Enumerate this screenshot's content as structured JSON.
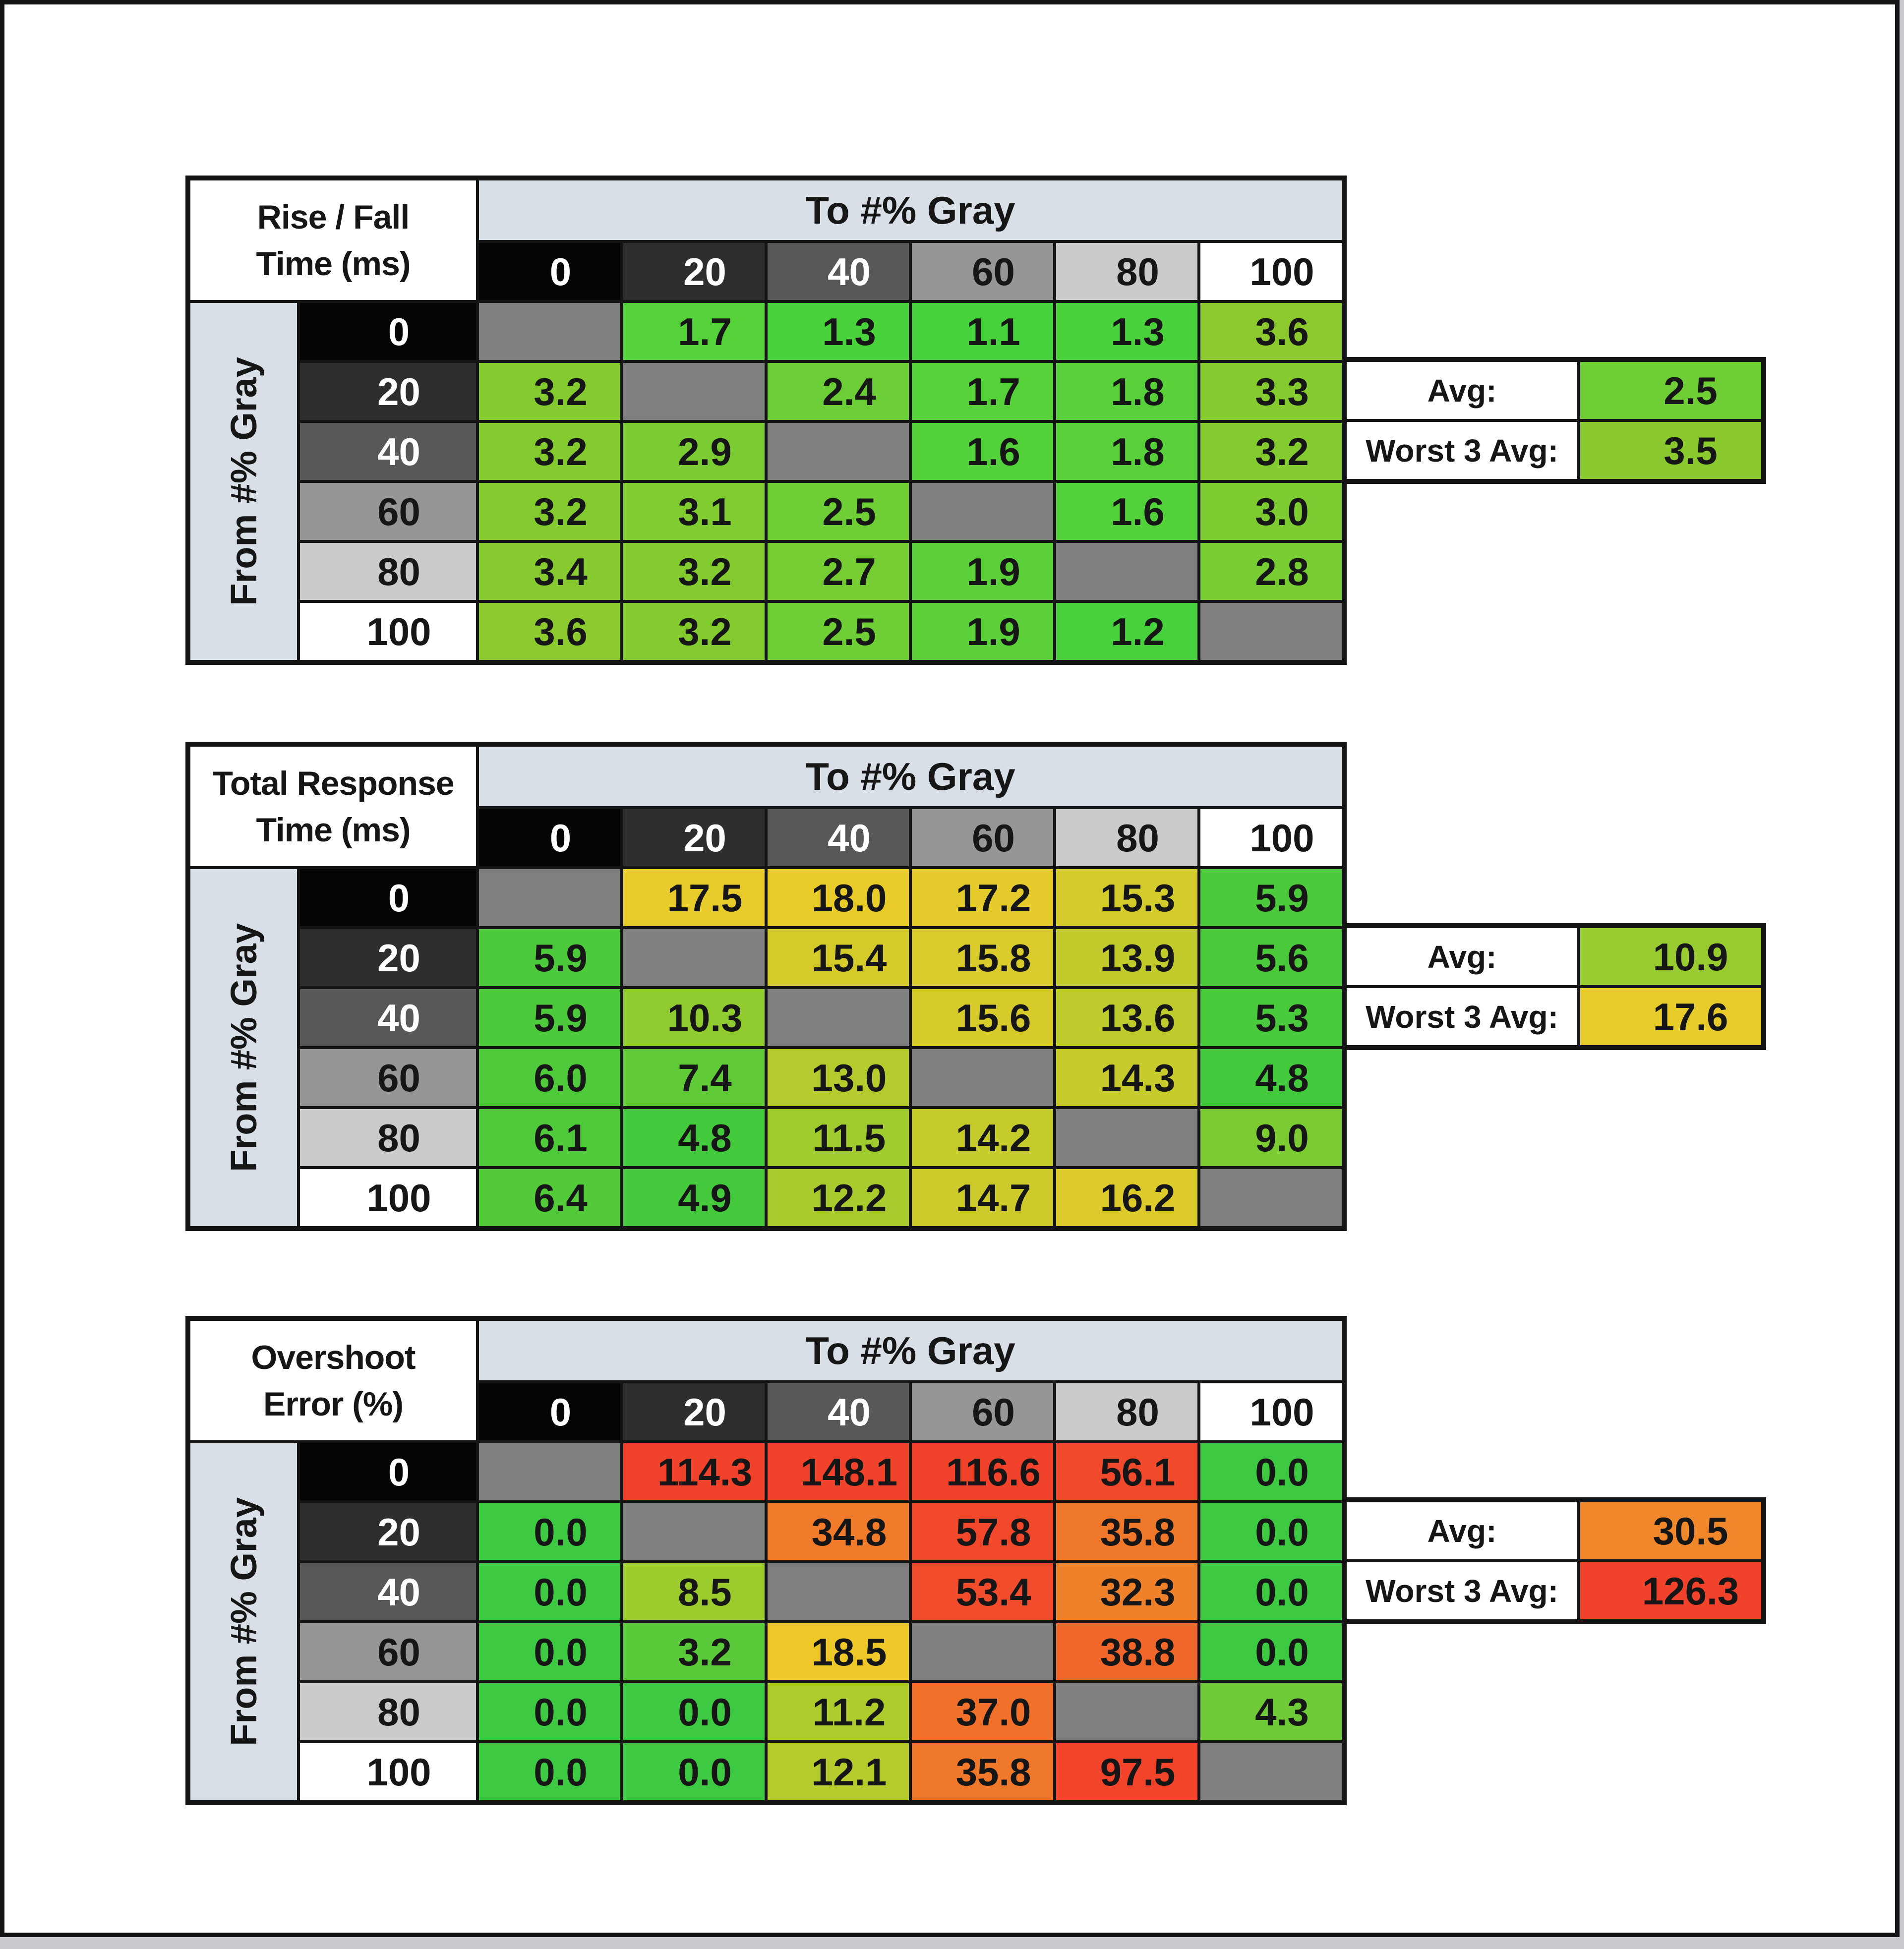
{
  "page": {
    "outer_bg": "#c9cbce",
    "frame_border": "#141414",
    "canvas_bg": "#ffffff"
  },
  "palette": {
    "band_bg": "#d9dfe7",
    "diagonal_bg": "#7f7f7f",
    "grid_line": "#141414",
    "good_green": "#3ec943",
    "mid_yellow": "#e6cb2b",
    "bad_red": "#f1432b"
  },
  "gray_scale": [
    {
      "label": "0",
      "bg": "#050505",
      "fg": "#ffffff"
    },
    {
      "label": "20",
      "bg": "#2e2e2e",
      "fg": "#ffffff"
    },
    {
      "label": "40",
      "bg": "#585858",
      "fg": "#ffffff"
    },
    {
      "label": "60",
      "bg": "#969696",
      "fg": "#161616"
    },
    {
      "label": "80",
      "bg": "#cbcbcb",
      "fg": "#161616"
    },
    {
      "label": "100",
      "bg": "#ffffff",
      "fg": "#161616"
    }
  ],
  "tables": [
    {
      "id": "rise-fall",
      "title_line1": "Rise / Fall",
      "title_line2": "Time (ms)",
      "to_label": "To #% Gray",
      "from_label": "From #% Gray",
      "rows": [
        [
          null,
          {
            "v": "1.7",
            "c": "#55d13a"
          },
          {
            "v": "1.3",
            "c": "#49d23c"
          },
          {
            "v": "1.1",
            "c": "#46d23d"
          },
          {
            "v": "1.3",
            "c": "#49d23c"
          },
          {
            "v": "3.6",
            "c": "#8dca2f"
          }
        ],
        [
          {
            "v": "3.2",
            "c": "#84cb30"
          },
          null,
          {
            "v": "2.4",
            "c": "#6cce36"
          },
          {
            "v": "1.7",
            "c": "#55d13a"
          },
          {
            "v": "1.8",
            "c": "#58d039"
          },
          {
            "v": "3.3",
            "c": "#86cb30"
          }
        ],
        [
          {
            "v": "3.2",
            "c": "#84cb30"
          },
          {
            "v": "2.9",
            "c": "#7bcc32"
          },
          null,
          {
            "v": "1.6",
            "c": "#52d13b"
          },
          {
            "v": "1.8",
            "c": "#58d039"
          },
          {
            "v": "3.2",
            "c": "#84cb30"
          }
        ],
        [
          {
            "v": "3.2",
            "c": "#84cb30"
          },
          {
            "v": "3.1",
            "c": "#81cc31"
          },
          {
            "v": "2.5",
            "c": "#6fce35"
          },
          null,
          {
            "v": "1.6",
            "c": "#52d13b"
          },
          {
            "v": "3.0",
            "c": "#7ecc31"
          }
        ],
        [
          {
            "v": "3.4",
            "c": "#88cb30"
          },
          {
            "v": "3.2",
            "c": "#84cb30"
          },
          {
            "v": "2.7",
            "c": "#75cd33"
          },
          {
            "v": "1.9",
            "c": "#5bd039"
          },
          null,
          {
            "v": "2.8",
            "c": "#78cd33"
          }
        ],
        [
          {
            "v": "3.6",
            "c": "#8dca2f"
          },
          {
            "v": "3.2",
            "c": "#84cb30"
          },
          {
            "v": "2.5",
            "c": "#6fce35"
          },
          {
            "v": "1.9",
            "c": "#5bd039"
          },
          {
            "v": "1.2",
            "c": "#47d23d"
          },
          null
        ]
      ],
      "summary": {
        "avg_label": "Avg:",
        "avg_value": "2.5",
        "avg_color": "#6fce35",
        "worst_label": "Worst 3 Avg:",
        "worst_value": "3.5",
        "worst_color": "#8aca2f"
      }
    },
    {
      "id": "total-response",
      "title_line1": "Total Response",
      "title_line2": "Time (ms)",
      "to_label": "To #% Gray",
      "from_label": "From #% Gray",
      "rows": [
        [
          null,
          {
            "v": "17.5",
            "c": "#e6cb2b"
          },
          {
            "v": "18.0",
            "c": "#e9cb2a"
          },
          {
            "v": "17.2",
            "c": "#e4cb2b"
          },
          {
            "v": "15.3",
            "c": "#d3cb2b"
          },
          {
            "v": "5.9",
            "c": "#4dca3b"
          }
        ],
        [
          {
            "v": "5.9",
            "c": "#4dca3b"
          },
          null,
          {
            "v": "15.4",
            "c": "#d4cb2b"
          },
          {
            "v": "15.8",
            "c": "#d8cb2b"
          },
          {
            "v": "13.9",
            "c": "#c2cb2c"
          },
          {
            "v": "5.6",
            "c": "#4aca3b"
          }
        ],
        [
          {
            "v": "5.9",
            "c": "#4dca3b"
          },
          {
            "v": "10.3",
            "c": "#90cb30"
          },
          null,
          {
            "v": "15.6",
            "c": "#d6cb2b"
          },
          {
            "v": "13.6",
            "c": "#becb2c"
          },
          {
            "v": "5.3",
            "c": "#48ca3c"
          }
        ],
        [
          {
            "v": "6.0",
            "c": "#4eca3a"
          },
          {
            "v": "7.4",
            "c": "#60ca37"
          },
          {
            "v": "13.0",
            "c": "#b5cb2d"
          },
          null,
          {
            "v": "14.3",
            "c": "#c7cb2c"
          },
          {
            "v": "4.8",
            "c": "#44ca3d"
          }
        ],
        [
          {
            "v": "6.1",
            "c": "#4fca3a"
          },
          {
            "v": "4.8",
            "c": "#44ca3d"
          },
          {
            "v": "11.5",
            "c": "#a0cb2e"
          },
          {
            "v": "14.2",
            "c": "#c6cb2c"
          },
          null,
          {
            "v": "9.0",
            "c": "#7ccb33"
          }
        ],
        [
          {
            "v": "6.4",
            "c": "#52ca39"
          },
          {
            "v": "4.9",
            "c": "#45ca3d"
          },
          {
            "v": "12.2",
            "c": "#aacb2d"
          },
          {
            "v": "14.7",
            "c": "#cccb2b"
          },
          {
            "v": "16.2",
            "c": "#dccb2b"
          },
          null
        ]
      ],
      "summary": {
        "avg_label": "Avg:",
        "avg_value": "10.9",
        "avg_color": "#97cb2f",
        "worst_label": "Worst 3 Avg:",
        "worst_value": "17.6",
        "worst_color": "#e6cb2b"
      }
    },
    {
      "id": "overshoot",
      "title_line1": "Overshoot",
      "title_line2": "Error (%)",
      "to_label": "To #% Gray",
      "from_label": "From #% Gray",
      "rows": [
        [
          null,
          {
            "v": "114.3",
            "c": "#f1432b"
          },
          {
            "v": "148.1",
            "c": "#f1432b"
          },
          {
            "v": "116.6",
            "c": "#f1432b"
          },
          {
            "v": "56.1",
            "c": "#f1492b"
          },
          {
            "v": "0.0",
            "c": "#3ec943"
          }
        ],
        [
          {
            "v": "0.0",
            "c": "#3ec943"
          },
          null,
          {
            "v": "34.8",
            "c": "#f07b2a"
          },
          {
            "v": "57.8",
            "c": "#f1482b"
          },
          {
            "v": "35.8",
            "c": "#f0782a"
          },
          {
            "v": "0.0",
            "c": "#3ec943"
          }
        ],
        [
          {
            "v": "0.0",
            "c": "#3ec943"
          },
          {
            "v": "8.5",
            "c": "#9ccb2e"
          },
          null,
          {
            "v": "53.4",
            "c": "#f14c2b"
          },
          {
            "v": "32.3",
            "c": "#f0812b"
          },
          {
            "v": "0.0",
            "c": "#3ec943"
          }
        ],
        [
          {
            "v": "0.0",
            "c": "#3ec943"
          },
          {
            "v": "3.2",
            "c": "#5bca3a"
          },
          {
            "v": "18.5",
            "c": "#eec929"
          },
          null,
          {
            "v": "38.8",
            "c": "#f1672b"
          },
          {
            "v": "0.0",
            "c": "#3ec943"
          }
        ],
        [
          {
            "v": "0.0",
            "c": "#3ec943"
          },
          {
            "v": "0.0",
            "c": "#3ec943"
          },
          {
            "v": "11.2",
            "c": "#afcc2d"
          },
          {
            "v": "37.0",
            "c": "#f1712b"
          },
          null,
          {
            "v": "4.3",
            "c": "#6eca37"
          }
        ],
        [
          {
            "v": "0.0",
            "c": "#3ec943"
          },
          {
            "v": "0.0",
            "c": "#3ec943"
          },
          {
            "v": "12.1",
            "c": "#b6cc2d"
          },
          {
            "v": "35.8",
            "c": "#f0782a"
          },
          {
            "v": "97.5",
            "c": "#f1442b"
          },
          null
        ]
      ],
      "summary": {
        "avg_label": "Avg:",
        "avg_value": "30.5",
        "avg_color": "#f0872b",
        "worst_label": "Worst 3 Avg:",
        "worst_value": "126.3",
        "worst_color": "#f1432b"
      }
    }
  ],
  "chart_data": [
    {
      "type": "heatmap",
      "title": "Rise / Fall Time (ms)",
      "xlabel": "To #% Gray",
      "ylabel": "From #% Gray",
      "categories_x": [
        0,
        20,
        40,
        60,
        80,
        100
      ],
      "categories_y": [
        0,
        20,
        40,
        60,
        80,
        100
      ],
      "matrix": [
        [
          null,
          1.7,
          1.3,
          1.1,
          1.3,
          3.6
        ],
        [
          3.2,
          null,
          2.4,
          1.7,
          1.8,
          3.3
        ],
        [
          3.2,
          2.9,
          null,
          1.6,
          1.8,
          3.2
        ],
        [
          3.2,
          3.1,
          2.5,
          null,
          1.6,
          3.0
        ],
        [
          3.4,
          3.2,
          2.7,
          1.9,
          null,
          2.8
        ],
        [
          3.6,
          3.2,
          2.5,
          1.9,
          1.2,
          null
        ]
      ],
      "avg": 2.5,
      "worst_3_avg": 3.5,
      "legend_position": "right",
      "grid": true
    },
    {
      "type": "heatmap",
      "title": "Total Response Time (ms)",
      "xlabel": "To #% Gray",
      "ylabel": "From #% Gray",
      "categories_x": [
        0,
        20,
        40,
        60,
        80,
        100
      ],
      "categories_y": [
        0,
        20,
        40,
        60,
        80,
        100
      ],
      "matrix": [
        [
          null,
          17.5,
          18.0,
          17.2,
          15.3,
          5.9
        ],
        [
          5.9,
          null,
          15.4,
          15.8,
          13.9,
          5.6
        ],
        [
          5.9,
          10.3,
          null,
          15.6,
          13.6,
          5.3
        ],
        [
          6.0,
          7.4,
          13.0,
          null,
          14.3,
          4.8
        ],
        [
          6.1,
          4.8,
          11.5,
          14.2,
          null,
          9.0
        ],
        [
          6.4,
          4.9,
          12.2,
          14.7,
          16.2,
          null
        ]
      ],
      "avg": 10.9,
      "worst_3_avg": 17.6,
      "legend_position": "right",
      "grid": true
    },
    {
      "type": "heatmap",
      "title": "Overshoot Error (%)",
      "xlabel": "To #% Gray",
      "ylabel": "From #% Gray",
      "categories_x": [
        0,
        20,
        40,
        60,
        80,
        100
      ],
      "categories_y": [
        0,
        20,
        40,
        60,
        80,
        100
      ],
      "matrix": [
        [
          null,
          114.3,
          148.1,
          116.6,
          56.1,
          0.0
        ],
        [
          0.0,
          null,
          34.8,
          57.8,
          35.8,
          0.0
        ],
        [
          0.0,
          8.5,
          null,
          53.4,
          32.3,
          0.0
        ],
        [
          0.0,
          3.2,
          18.5,
          null,
          38.8,
          0.0
        ],
        [
          0.0,
          0.0,
          11.2,
          37.0,
          null,
          4.3
        ],
        [
          0.0,
          0.0,
          12.1,
          35.8,
          97.5,
          null
        ]
      ],
      "avg": 30.5,
      "worst_3_avg": 126.3,
      "legend_position": "right",
      "grid": true
    }
  ]
}
